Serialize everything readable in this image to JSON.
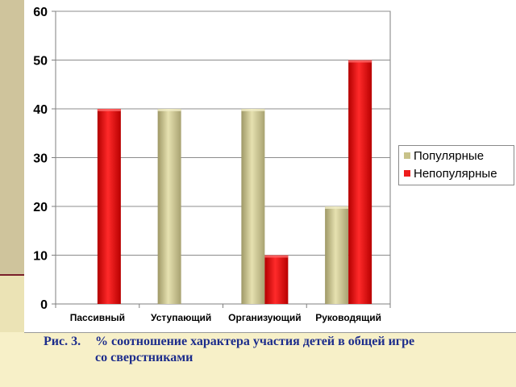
{
  "chart_data": {
    "type": "bar",
    "categories": [
      "Пассивный",
      "Уступающий",
      "Организующий",
      "Руководящий"
    ],
    "series": [
      {
        "name": "Популярные",
        "values": [
          0,
          40,
          40,
          20
        ],
        "color": "#c8c289"
      },
      {
        "name": "Непопулярные",
        "values": [
          40,
          0,
          10,
          50
        ],
        "color": "#ee1c1c"
      }
    ],
    "ylim": [
      0,
      60
    ],
    "yticks": [
      "0",
      "10",
      "20",
      "30",
      "40",
      "50",
      "60"
    ],
    "grid": true,
    "legend_position": "right"
  },
  "caption": {
    "number": "Рис. 3.",
    "line1": "% соотношение характера участия детей в общей игре",
    "line2": "со сверстниками"
  }
}
